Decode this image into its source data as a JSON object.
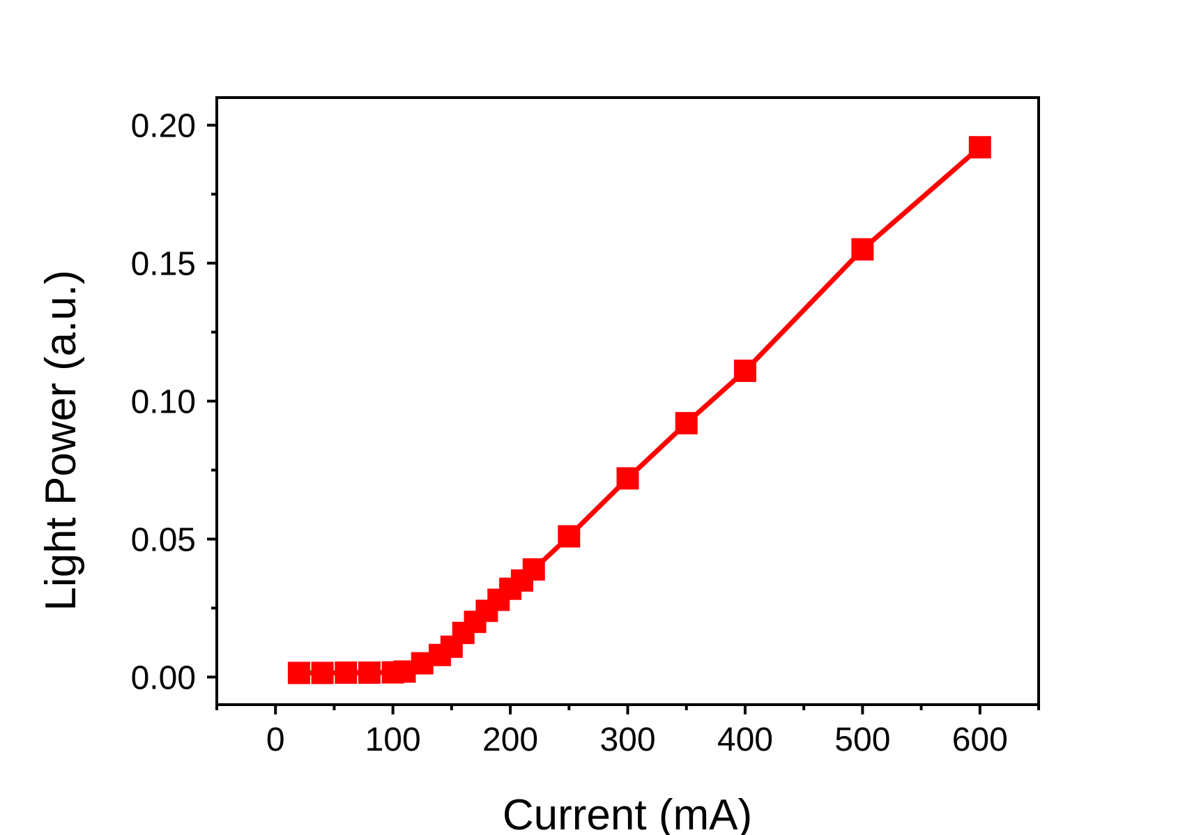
{
  "chart_data": {
    "type": "line",
    "title": "",
    "xlabel": "Current (mA)",
    "ylabel": "Light Power (a.u.)",
    "xlim": [
      -50,
      650
    ],
    "ylim": [
      -0.01,
      0.21
    ],
    "x_ticks": [
      0,
      100,
      200,
      300,
      400,
      500,
      600
    ],
    "x_tick_labels": [
      "0",
      "100",
      "200",
      "300",
      "400",
      "500",
      "600"
    ],
    "y_ticks": [
      0.0,
      0.05,
      0.1,
      0.15,
      0.2
    ],
    "y_tick_labels": [
      "0.00",
      "0.05",
      "0.10",
      "0.15",
      "0.20"
    ],
    "grid": false,
    "legend": "none",
    "marker": "square",
    "color": "#ff0000",
    "series": [
      {
        "x": [
          20,
          40,
          60,
          80,
          100,
          110,
          125,
          140,
          150,
          160,
          170,
          180,
          190,
          200,
          210,
          220,
          250,
          300,
          350,
          400,
          500,
          600
        ],
        "y": [
          0.0015,
          0.0015,
          0.0016,
          0.0016,
          0.0017,
          0.002,
          0.005,
          0.008,
          0.011,
          0.016,
          0.02,
          0.024,
          0.028,
          0.032,
          0.035,
          0.039,
          0.051,
          0.072,
          0.092,
          0.111,
          0.155,
          0.192
        ]
      }
    ]
  }
}
